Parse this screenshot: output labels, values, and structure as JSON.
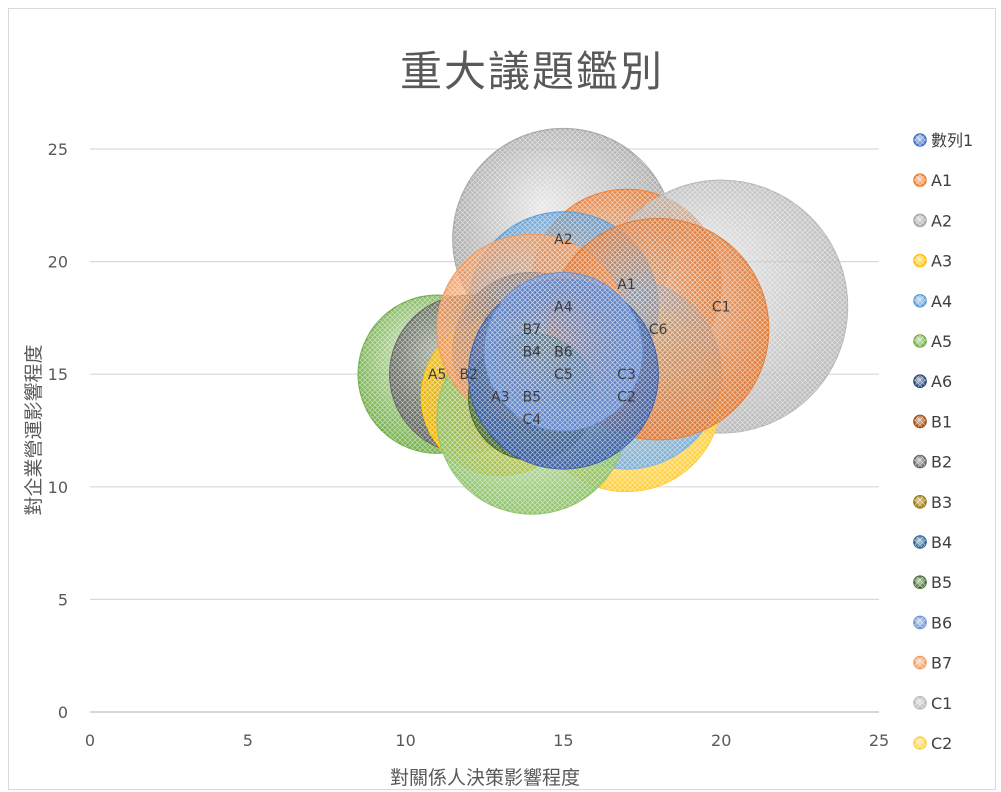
{
  "chart_data": {
    "type": "bubble",
    "title": "重大議題鑑別",
    "xlabel": "對關係人決策影響程度",
    "ylabel": "對企業營運影響程度",
    "xlim": [
      0,
      25
    ],
    "ylim": [
      0,
      25
    ],
    "xticks": [
      0,
      5,
      10,
      15,
      20,
      25
    ],
    "yticks": [
      0,
      5,
      10,
      15,
      20,
      25
    ],
    "grid": "horizontal",
    "legend_position": "right",
    "series": [
      {
        "name": "數列1",
        "color": "#4472c4",
        "points": []
      },
      {
        "name": "A1",
        "color": "#ed7d31",
        "points": [
          {
            "x": 17,
            "y": 19,
            "size": 3.0
          }
        ]
      },
      {
        "name": "A2",
        "color": "#a5a5a5",
        "points": [
          {
            "x": 15,
            "y": 21,
            "size": 3.5
          }
        ]
      },
      {
        "name": "A3",
        "color": "#ffc000",
        "points": [
          {
            "x": 13,
            "y": 14,
            "size": 2.5
          }
        ]
      },
      {
        "name": "A4",
        "color": "#5b9bd5",
        "points": [
          {
            "x": 15,
            "y": 18,
            "size": 3.0
          }
        ]
      },
      {
        "name": "A5",
        "color": "#70ad47",
        "points": [
          {
            "x": 11,
            "y": 15,
            "size": 2.5
          }
        ]
      },
      {
        "name": "A6",
        "color": "#264478",
        "points": []
      },
      {
        "name": "B1",
        "color": "#9e480e",
        "points": []
      },
      {
        "name": "B2",
        "color": "#636363",
        "points": [
          {
            "x": 12,
            "y": 15,
            "size": 2.5
          }
        ]
      },
      {
        "name": "B3",
        "color": "#997300",
        "points": []
      },
      {
        "name": "B4",
        "color": "#255e91",
        "points": [
          {
            "x": 14,
            "y": 16,
            "size": 2.5
          }
        ]
      },
      {
        "name": "B5",
        "color": "#43682b",
        "points": [
          {
            "x": 14,
            "y": 14,
            "size": 2.0
          }
        ]
      },
      {
        "name": "B6",
        "color": "#698ed0",
        "points": [
          {
            "x": 15,
            "y": 16,
            "size": 2.5
          }
        ]
      },
      {
        "name": "B7",
        "color": "#f1975a",
        "points": [
          {
            "x": 14,
            "y": 17,
            "size": 3.0
          }
        ]
      },
      {
        "name": "C1",
        "color": "#b7b7b7",
        "points": [
          {
            "x": 20,
            "y": 18,
            "size": 4.0
          }
        ]
      },
      {
        "name": "C2",
        "color": "#ffcd33",
        "points": [
          {
            "x": 17,
            "y": 14,
            "size": 3.0
          }
        ]
      },
      {
        "name": "C3",
        "color": "#7cafdd",
        "points": [
          {
            "x": 17,
            "y": 15,
            "size": 3.0
          }
        ]
      },
      {
        "name": "C4",
        "color": "#8cc168",
        "points": [
          {
            "x": 14,
            "y": 13,
            "size": 3.0
          }
        ]
      },
      {
        "name": "C5",
        "color": "#3a5fa8",
        "points": [
          {
            "x": 15,
            "y": 15,
            "size": 3.0
          }
        ]
      },
      {
        "name": "C6",
        "color": "#e27a34",
        "points": [
          {
            "x": 18,
            "y": 17,
            "size": 3.5
          }
        ]
      }
    ],
    "legend_visible": [
      "數列1",
      "A1",
      "A2",
      "A3",
      "A4",
      "A5",
      "A6",
      "B1",
      "B2",
      "B3",
      "B4",
      "B5",
      "B6",
      "B7",
      "C1",
      "C2"
    ],
    "draw_order": [
      "A2",
      "A1",
      "C1",
      "C2",
      "C3",
      "A4",
      "A5",
      "B2",
      "A3",
      "C4",
      "B4",
      "B7",
      "C6",
      "B5",
      "C5",
      "B6"
    ]
  }
}
